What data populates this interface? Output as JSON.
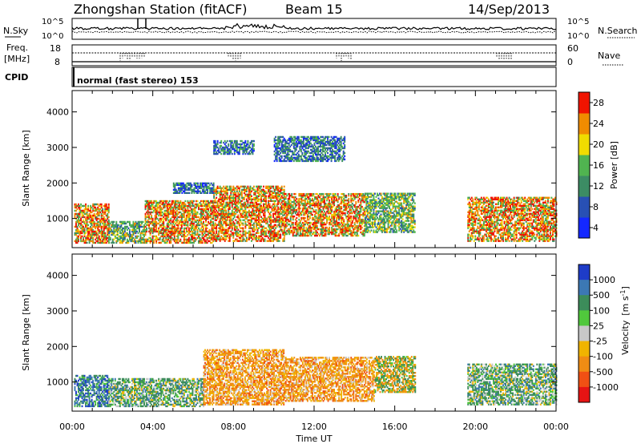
{
  "header": {
    "title": "Zhongshan Station (fitACF)",
    "beam": "Beam 15",
    "date": "14/Sep/2013"
  },
  "strips": {
    "nsky_label": "N.Sky",
    "nsearch_label": "N.Search",
    "nsky_ticks": [
      "10^5",
      "10^0"
    ],
    "nsearch_ticks": [
      "10^5",
      "10^0"
    ],
    "freq_label": "Freq.",
    "freq_unit": "[MHz]",
    "freq_ticks": [
      "18",
      "8"
    ],
    "nave_label": "Nave",
    "nave_ticks": [
      "60",
      "0"
    ],
    "cpid_label": "CPID",
    "cpid_text": "normal (fast stereo) 153"
  },
  "axes": {
    "ylabel": "Slant Range [km]",
    "xlabel": "Time UT",
    "yticks": [
      "1000",
      "2000",
      "3000",
      "4000"
    ],
    "xticks": [
      "00:00",
      "04:00",
      "08:00",
      "12:00",
      "16:00",
      "20:00",
      "00:00"
    ]
  },
  "chart_data": [
    {
      "type": "heatmap",
      "title": "",
      "quantity": "Power",
      "colorbar_label": "Power [dB]",
      "xlabel": "Time UT",
      "ylabel": "Slant Range [km]",
      "x_range_hours": [
        0,
        24
      ],
      "ylim": [
        180,
        4600
      ],
      "colorbar_ticks": [
        "4",
        "8",
        "12",
        "16",
        "20",
        "24",
        "28"
      ],
      "colorbar_colors": [
        "#1428ff",
        "#2850b4",
        "#3c8c64",
        "#50b450",
        "#f0dc00",
        "#f08c00",
        "#f01400"
      ],
      "regions": [
        {
          "t0": 0.1,
          "t1": 1.8,
          "r0": 300,
          "r1": 1400,
          "level": "high"
        },
        {
          "t0": 1.8,
          "t1": 3.6,
          "r0": 300,
          "r1": 900,
          "level": "mid"
        },
        {
          "t0": 3.6,
          "t1": 7.0,
          "r0": 300,
          "r1": 1500,
          "level": "high"
        },
        {
          "t0": 7.0,
          "t1": 10.5,
          "r0": 350,
          "r1": 1900,
          "level": "high"
        },
        {
          "t0": 10.5,
          "t1": 14.5,
          "r0": 500,
          "r1": 1700,
          "level": "high"
        },
        {
          "t0": 14.5,
          "t1": 17.0,
          "r0": 600,
          "r1": 1700,
          "level": "mid"
        },
        {
          "t0": 19.6,
          "t1": 24.0,
          "r0": 350,
          "r1": 1600,
          "level": "high"
        },
        {
          "t0": 7.0,
          "t1": 9.0,
          "r0": 2800,
          "r1": 3200,
          "level": "low"
        },
        {
          "t0": 10.0,
          "t1": 13.5,
          "r0": 2600,
          "r1": 3300,
          "level": "low"
        },
        {
          "t0": 5.0,
          "t1": 7.0,
          "r0": 1700,
          "r1": 2000,
          "level": "low"
        }
      ]
    },
    {
      "type": "heatmap",
      "title": "",
      "quantity": "Velocity",
      "colorbar_label": "Velocity",
      "colorbar_unit": "[m s",
      "colorbar_unit_sup": "-1",
      "colorbar_unit_end": "]",
      "xlabel": "Time UT",
      "ylabel": "Slant Range [km]",
      "x_range_hours": [
        0,
        24
      ],
      "ylim": [
        180,
        4600
      ],
      "colorbar_ticks": [
        "1000",
        "500",
        "100",
        "25",
        "-25",
        "-100",
        "-500",
        "-1000"
      ],
      "colorbar_colors": [
        "#1e3cc8",
        "#3c78b4",
        "#3c8c5a",
        "#50c83c",
        "#c8c8c8",
        "#f0b400",
        "#f08c14",
        "#f05014",
        "#e61414"
      ],
      "regions": [
        {
          "t0": 0.1,
          "t1": 1.8,
          "r0": 300,
          "r1": 1200,
          "level": "toward"
        },
        {
          "t0": 1.8,
          "t1": 6.5,
          "r0": 300,
          "r1": 1100,
          "level": "weak-toward"
        },
        {
          "t0": 6.5,
          "t1": 10.5,
          "r0": 350,
          "r1": 1900,
          "level": "away"
        },
        {
          "t0": 10.5,
          "t1": 15.0,
          "r0": 450,
          "r1": 1700,
          "level": "away"
        },
        {
          "t0": 15.0,
          "t1": 17.0,
          "r0": 700,
          "r1": 1700,
          "level": "mixed"
        },
        {
          "t0": 19.6,
          "t1": 24.0,
          "r0": 350,
          "r1": 1500,
          "level": "weak-toward"
        }
      ]
    }
  ]
}
